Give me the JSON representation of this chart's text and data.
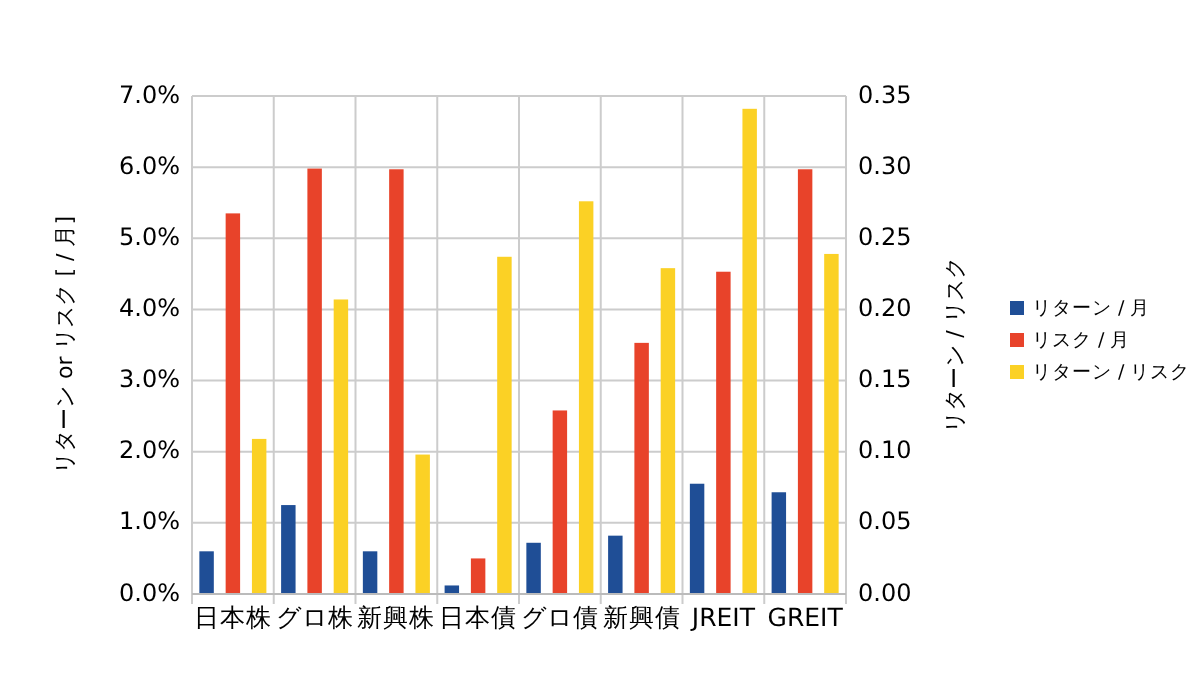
{
  "chart_data": {
    "type": "bar",
    "ylabel": "リターン or リスク [ / 月]",
    "y2label": "リターン / リスク",
    "categories": [
      "日本株",
      "グロ株",
      "新興株",
      "日本債",
      "グロ債",
      "新興債",
      "JREIT",
      "GREIT"
    ],
    "series": [
      {
        "name": "リターン / 月",
        "color": "#1f4e96",
        "values": [
          0.6,
          1.25,
          0.6,
          0.12,
          0.72,
          0.82,
          1.55,
          1.43
        ]
      },
      {
        "name": "リスク / 月",
        "color": "#e8432a",
        "values": [
          5.35,
          5.98,
          5.97,
          0.5,
          2.58,
          3.53,
          4.53,
          5.97
        ]
      },
      {
        "name": "リターン / リスク",
        "color": "#fbd125",
        "axis": "y2",
        "values": [
          0.109,
          0.207,
          0.098,
          0.237,
          0.276,
          0.229,
          0.341,
          0.239
        ]
      }
    ],
    "ylim": [
      0,
      7
    ],
    "yticks": [
      {
        "value": 0,
        "label": "0.0%"
      },
      {
        "value": 1,
        "label": "1.0%"
      },
      {
        "value": 2,
        "label": "2.0%"
      },
      {
        "value": 3,
        "label": "3.0%"
      },
      {
        "value": 4,
        "label": "4.0%"
      },
      {
        "value": 5,
        "label": "5.0%"
      },
      {
        "value": 6,
        "label": "6.0%"
      },
      {
        "value": 7,
        "label": "7.0%"
      }
    ],
    "y2lim": [
      0,
      0.35
    ],
    "y2ticks": [
      {
        "value": 0,
        "label": "0.00"
      },
      {
        "value": 0.05,
        "label": "0.05"
      },
      {
        "value": 0.1,
        "label": "0.10"
      },
      {
        "value": 0.15,
        "label": "0.15"
      },
      {
        "value": 0.2,
        "label": "0.20"
      },
      {
        "value": 0.25,
        "label": "0.25"
      },
      {
        "value": 0.3,
        "label": "0.30"
      },
      {
        "value": 0.35,
        "label": "0.35"
      }
    ],
    "grid": true,
    "legend": "right"
  }
}
